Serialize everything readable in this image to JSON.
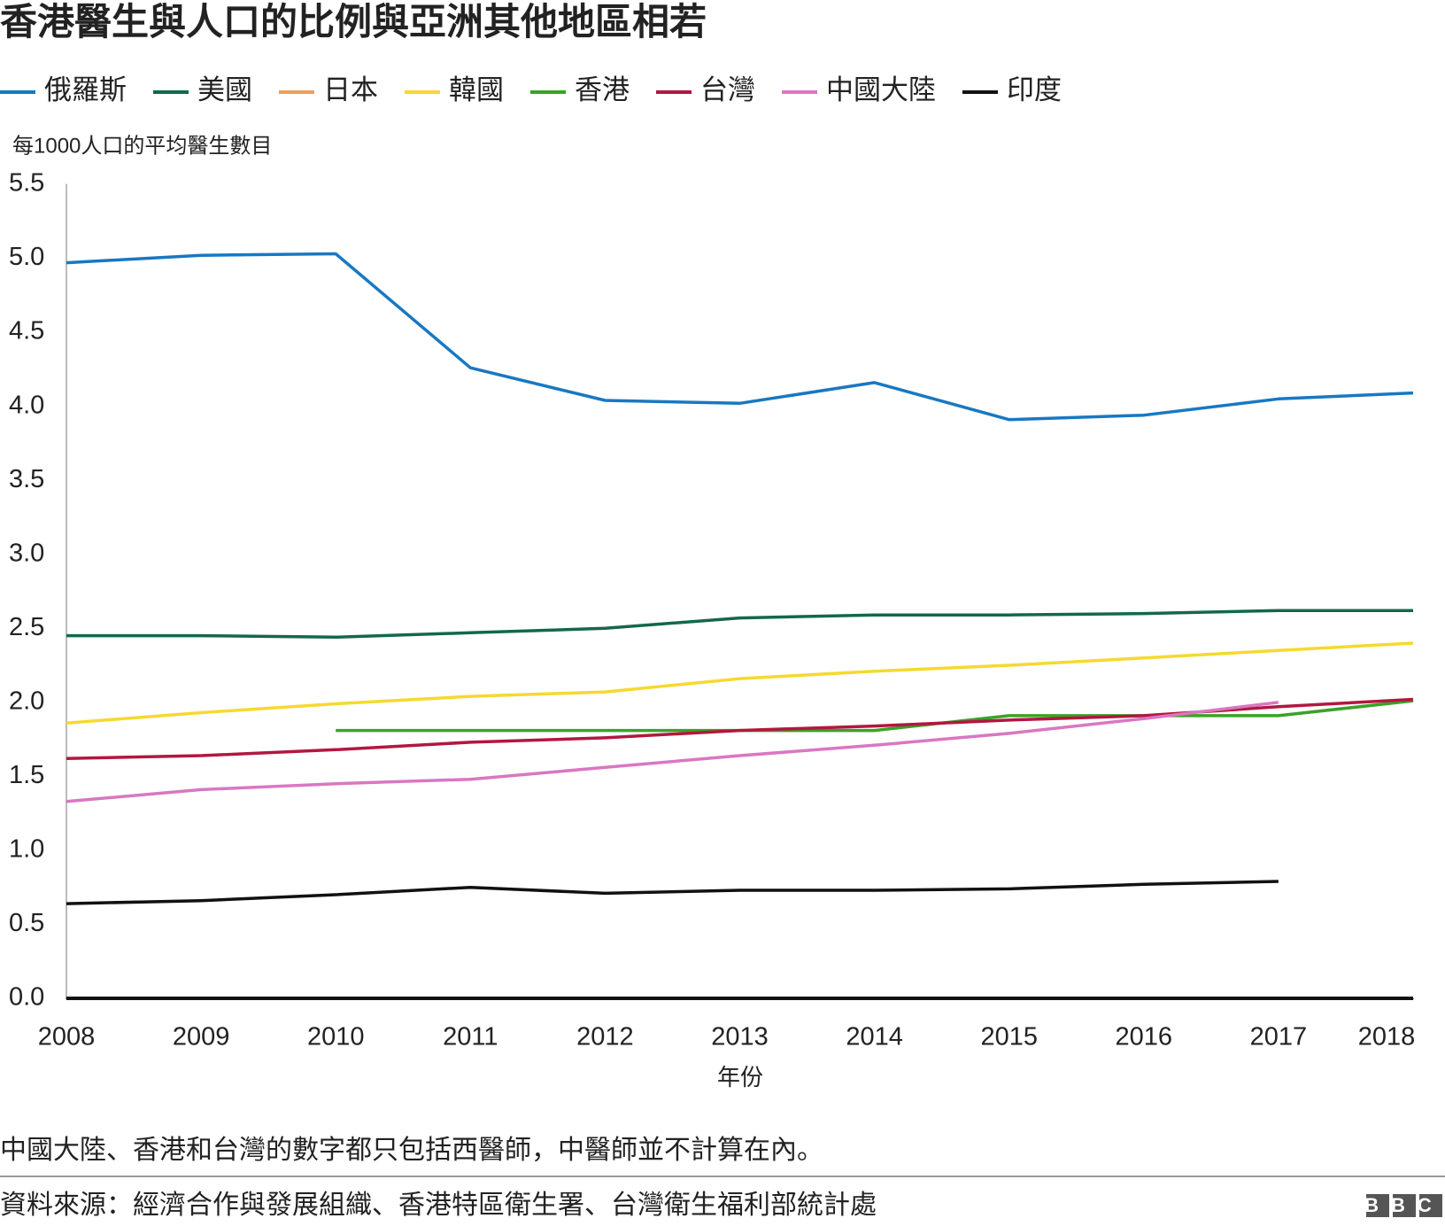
{
  "chart_data": {
    "type": "line",
    "title": "香港醫生與人口的比例與亞洲其他地區相若",
    "y_label": "每1000人口的平均醫生數目",
    "x_label": "年份",
    "note": "中國大陸、香港和台灣的數字都只包括西醫師，中醫師並不計算在內。",
    "source": "資料來源：經濟合作與發展組織、香港特區衛生署、台灣衛生福利部統計處",
    "logo": "BBC",
    "x": [
      2008,
      2009,
      2010,
      2011,
      2012,
      2013,
      2014,
      2015,
      2016,
      2017,
      2018
    ],
    "xlim": [
      2008,
      2018
    ],
    "xticks": [
      2008,
      2009,
      2010,
      2011,
      2012,
      2013,
      2014,
      2015,
      2016,
      2017,
      2018
    ],
    "ylim": [
      0,
      5.5
    ],
    "yticks": [
      {
        "value": 0,
        "label": "0.0"
      },
      0.5,
      {
        "value": 1,
        "label": "1.0"
      },
      1.5,
      {
        "value": 2,
        "label": "2.0"
      },
      2.5,
      {
        "value": 3,
        "label": "3.0"
      },
      3.5,
      {
        "value": 4,
        "label": "4.0"
      },
      4.5,
      {
        "value": 5,
        "label": "5.0"
      },
      5.5
    ],
    "grid": false,
    "series": [
      {
        "name": "俄羅斯",
        "color": "#1878c2",
        "values": [
          4.97,
          5.02,
          5.03,
          4.26,
          4.04,
          4.02,
          4.16,
          3.91,
          3.94,
          4.05,
          4.09
        ]
      },
      {
        "name": "美國",
        "color": "#13684c",
        "values": [
          2.45,
          2.45,
          2.44,
          2.47,
          2.5,
          2.57,
          2.59,
          2.59,
          2.6,
          2.62,
          2.62
        ]
      },
      {
        "name": "日本",
        "color": "#e8a060",
        "values": [
          null,
          null,
          null,
          null,
          null,
          null,
          null,
          null,
          null,
          null,
          null
        ]
      },
      {
        "name": "韓國",
        "color": "#f5d930",
        "values": [
          1.86,
          1.93,
          1.99,
          2.04,
          2.07,
          2.16,
          2.21,
          2.25,
          2.3,
          2.35,
          2.4
        ]
      },
      {
        "name": "香港",
        "color": "#3aa228",
        "values": [
          null,
          null,
          1.81,
          1.81,
          1.81,
          1.81,
          1.81,
          1.91,
          1.91,
          1.91,
          2.01
        ]
      },
      {
        "name": "台灣",
        "color": "#b2173f",
        "values": [
          1.62,
          1.64,
          1.68,
          1.73,
          1.76,
          1.81,
          1.84,
          1.88,
          1.91,
          1.97,
          2.02
        ]
      },
      {
        "name": "中國大陸",
        "color": "#d977c1",
        "values": [
          1.33,
          1.41,
          1.45,
          1.48,
          1.56,
          1.64,
          1.71,
          1.79,
          1.89,
          2.0,
          null
        ]
      },
      {
        "name": "印度",
        "color": "#111111",
        "values": [
          0.64,
          0.66,
          0.7,
          0.75,
          0.71,
          0.73,
          0.73,
          0.74,
          0.77,
          0.79,
          null
        ]
      }
    ]
  }
}
